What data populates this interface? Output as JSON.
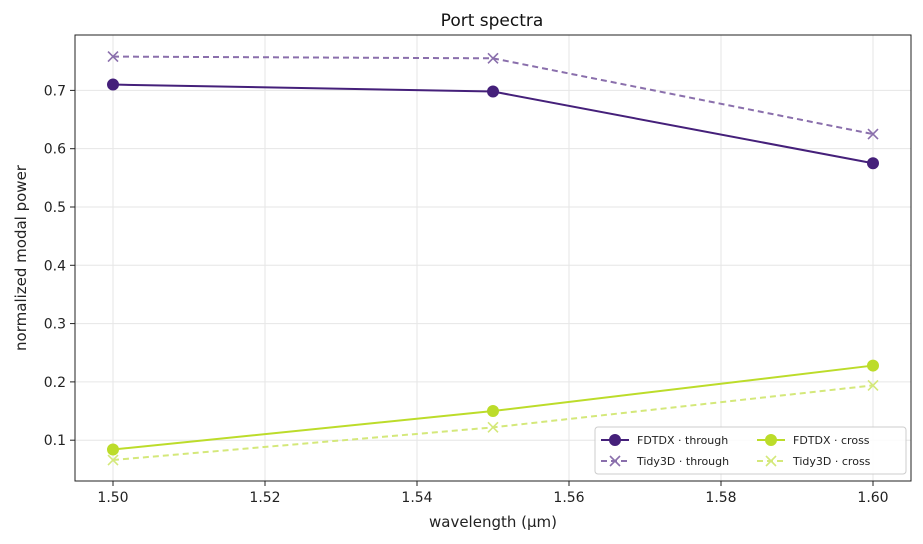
{
  "chart_data": {
    "type": "line",
    "title": "Port spectra",
    "xlabel": "wavelength (µm)",
    "ylabel": "normalized modal power",
    "xlim": [
      1.495,
      1.605
    ],
    "ylim": [
      0.03,
      0.795
    ],
    "xticks": [
      1.5,
      1.52,
      1.54,
      1.56,
      1.58,
      1.6
    ],
    "xtick_labels": [
      "1.50",
      "1.52",
      "1.54",
      "1.56",
      "1.58",
      "1.60"
    ],
    "yticks": [
      0.1,
      0.2,
      0.3,
      0.4,
      0.5,
      0.6,
      0.7
    ],
    "ytick_labels": [
      "0.1",
      "0.2",
      "0.3",
      "0.4",
      "0.5",
      "0.6",
      "0.7"
    ],
    "grid": true,
    "legend_position": "bottom-right",
    "legend_columns": 2,
    "x": [
      1.5,
      1.55,
      1.6
    ],
    "series": [
      {
        "name": "FDTDX · through",
        "values": [
          0.71,
          0.698,
          0.575
        ],
        "color": "#45207a",
        "dashed": false,
        "marker": "circle"
      },
      {
        "name": "Tidy3D · through",
        "values": [
          0.758,
          0.755,
          0.625
        ],
        "color": "#8a6fac",
        "dashed": true,
        "marker": "x"
      },
      {
        "name": "FDTDX · cross",
        "values": [
          0.084,
          0.15,
          0.228
        ],
        "color": "#bcdc2a",
        "dashed": false,
        "marker": "circle"
      },
      {
        "name": "Tidy3D · cross",
        "values": [
          0.066,
          0.122,
          0.194
        ],
        "color": "#d4e87a",
        "dashed": true,
        "marker": "x"
      }
    ]
  }
}
